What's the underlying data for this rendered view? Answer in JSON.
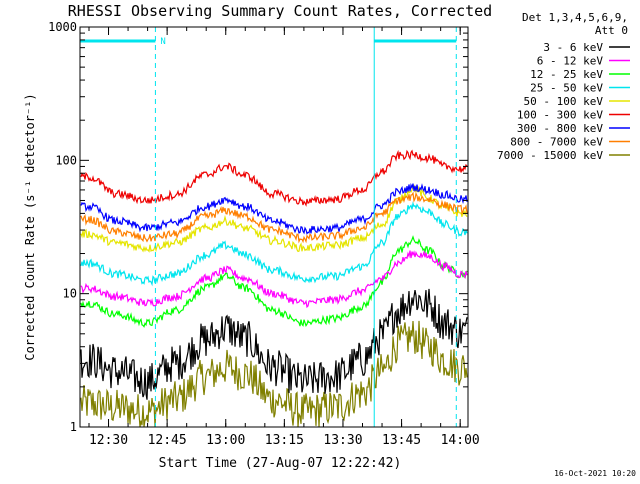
{
  "chart_data": {
    "type": "line",
    "title": "RHESSI Observing Summary Count Rates, Corrected",
    "ylabel": "Corrected Count Rate (s⁻¹ detector⁻¹)",
    "xlabel": "Start Time (27-Aug-07 12:22:42)",
    "yscale": "log",
    "ylim": [
      1,
      1000
    ],
    "y_ticks": [
      1,
      10,
      100,
      1000
    ],
    "y_tick_labels": [
      "1",
      "10",
      "100",
      "1000"
    ],
    "xlim": [
      "12:22:42",
      "14:02:00"
    ],
    "x_ticks": [
      "12:30",
      "12:45",
      "13:00",
      "13:15",
      "13:30",
      "13:45",
      "14:00"
    ],
    "timestamp": "16-Oct-2021 10:20",
    "legend": {
      "position": "right",
      "header_line1": "Det 1,3,4,5,6,9,",
      "header_line2": "Att 0"
    },
    "flags": [
      {
        "label": "N",
        "start": "12:22:42",
        "end": "12:42:00",
        "color": "#00e5ee"
      },
      {
        "label": "",
        "start": "13:38:00",
        "end": "13:59:00",
        "color": "#00e5ee"
      }
    ],
    "vertical_lines": [
      {
        "time": "12:42:00",
        "style": "dashed",
        "color": "#00e5ee"
      },
      {
        "time": "13:38:00",
        "style": "solid",
        "color": "#00e5ee"
      },
      {
        "time": "13:59:00",
        "style": "dashed",
        "color": "#00e5ee"
      }
    ],
    "x": [
      "12:25",
      "12:32",
      "12:40",
      "12:47",
      "12:55",
      "13:00",
      "13:05",
      "13:12",
      "13:20",
      "13:28",
      "13:35",
      "13:40",
      "13:44",
      "13:48",
      "13:52",
      "13:56",
      "14:00"
    ],
    "series": [
      {
        "name": "3 - 6 keV",
        "color": "#000000",
        "values": [
          3.2,
          2.6,
          2.2,
          3.0,
          4.5,
          5.5,
          4.6,
          2.8,
          2.2,
          2.4,
          3.2,
          4.8,
          7.5,
          9.5,
          8.2,
          6.0,
          5.2
        ]
      },
      {
        "name": "6 - 12 keV",
        "color": "#ff00ff",
        "values": [
          11,
          9.5,
          8.5,
          9.5,
          13,
          15,
          13,
          10,
          8.5,
          9,
          10.5,
          13,
          17,
          20,
          19,
          16,
          14
        ]
      },
      {
        "name": "12 - 25 keV",
        "color": "#00ff00",
        "values": [
          8.5,
          7,
          6,
          7.5,
          11,
          13.5,
          11,
          7.5,
          6,
          6.5,
          8,
          12,
          21,
          25,
          21,
          16,
          14
        ]
      },
      {
        "name": "25 - 50 keV",
        "color": "#00e5ee",
        "values": [
          17,
          14,
          12.5,
          14,
          19.5,
          23,
          19.5,
          15,
          13,
          13.5,
          16,
          24,
          38,
          46,
          41,
          33,
          29
        ]
      },
      {
        "name": "50 - 100 keV",
        "color": "#e5e500",
        "values": [
          28,
          24,
          22,
          24,
          31,
          35,
          31,
          25,
          22,
          23,
          26,
          33,
          50,
          62,
          52,
          44,
          40
        ]
      },
      {
        "name": "100 - 300 keV",
        "color": "#ee0000",
        "values": [
          75,
          56,
          50,
          55,
          78,
          90,
          77,
          56,
          49,
          51,
          60,
          82,
          108,
          110,
          104,
          90,
          86
        ]
      },
      {
        "name": "300 - 800 keV",
        "color": "#0000ff",
        "values": [
          45,
          35,
          31,
          34,
          45,
          51,
          45,
          35,
          30,
          31,
          36,
          46,
          58,
          63,
          60,
          55,
          51
        ]
      },
      {
        "name": "800 - 7000 keV",
        "color": "#ff7f00",
        "values": [
          36,
          29,
          26,
          28,
          38,
          42,
          38,
          30,
          26,
          27,
          31,
          40,
          50,
          53,
          51,
          46,
          43
        ]
      },
      {
        "name": "7000 - 15000 keV",
        "color": "#808000",
        "values": [
          1.5,
          1.4,
          1.3,
          1.6,
          2.4,
          2.8,
          2.5,
          1.6,
          1.3,
          1.4,
          1.8,
          2.6,
          4.2,
          4.8,
          4.0,
          3.2,
          2.8
        ]
      }
    ]
  }
}
